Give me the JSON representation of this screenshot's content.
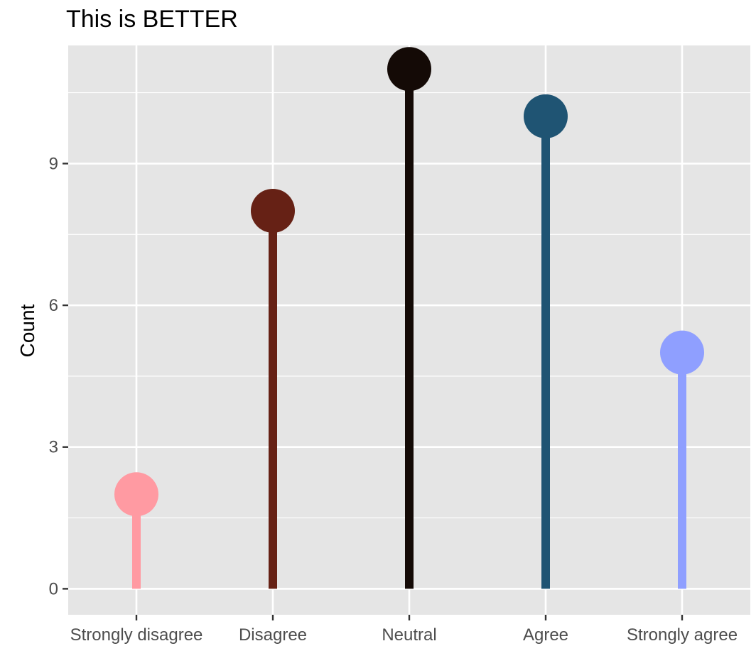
{
  "chart_data": {
    "type": "lollipop",
    "title": "This is BETTER",
    "xlabel": "",
    "ylabel": "Count",
    "categories": [
      "Strongly disagree",
      "Disagree",
      "Neutral",
      "Agree",
      "Strongly agree"
    ],
    "values": [
      2,
      8,
      11,
      10,
      5
    ],
    "colors": [
      "#FF9AA2",
      "#662115",
      "#140A06",
      "#1F5473",
      "#8F9FFF"
    ],
    "ylim": [
      -0.55,
      11.5
    ],
    "y_ticks": [
      0,
      3,
      6,
      9
    ],
    "y_tick_labels": [
      "0",
      "3",
      "6",
      "9"
    ],
    "grid": true,
    "legend": "none",
    "panel_background": "#E5E5E5",
    "grid_color": "#FFFFFF"
  }
}
